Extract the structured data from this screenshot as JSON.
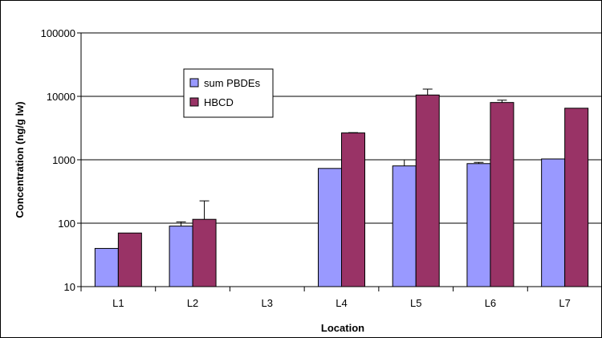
{
  "chart_data": {
    "type": "bar",
    "xlabel": "Location",
    "ylabel": "Concentration (ng/g lw)",
    "yscale": "log",
    "ylim": [
      10,
      100000
    ],
    "y_ticks": [
      "10",
      "100",
      "1000",
      "10000",
      "100000"
    ],
    "y_tick_values": [
      10,
      100,
      1000,
      10000,
      100000
    ],
    "grid": "horizontal",
    "legend_position": "upper-left inside plot",
    "categories": [
      "L1",
      "L2",
      "L3",
      "L4",
      "L5",
      "L6",
      "L7"
    ],
    "series": [
      {
        "name": "sum PBDEs",
        "color": "#9999FF",
        "values": [
          40,
          90,
          null,
          730,
          800,
          870,
          1030
        ],
        "error_plus": [
          null,
          15,
          null,
          null,
          200,
          40,
          null
        ]
      },
      {
        "name": "HBCD",
        "color": "#993366",
        "values": [
          70,
          115,
          null,
          2650,
          10500,
          8000,
          6500
        ],
        "error_plus": [
          null,
          110,
          null,
          30,
          2500,
          700,
          null
        ]
      }
    ]
  }
}
